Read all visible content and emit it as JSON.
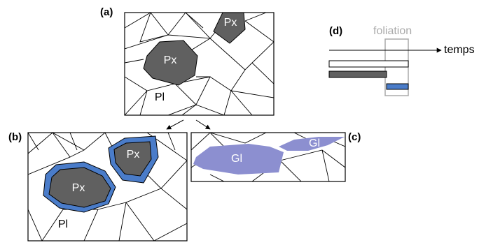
{
  "panels": {
    "a": {
      "label": "(a)",
      "px_small": "Px",
      "px_large": "Px",
      "pl": "Pl"
    },
    "b": {
      "label": "(b)",
      "px_small": "Px",
      "px_large": "Px",
      "pl": "Pl"
    },
    "c": {
      "label": "(c)",
      "gl_large": "Gl",
      "gl_small": "Gl"
    },
    "d": {
      "label": "(d)",
      "foliation": "foliation",
      "axis": "temps"
    }
  }
}
